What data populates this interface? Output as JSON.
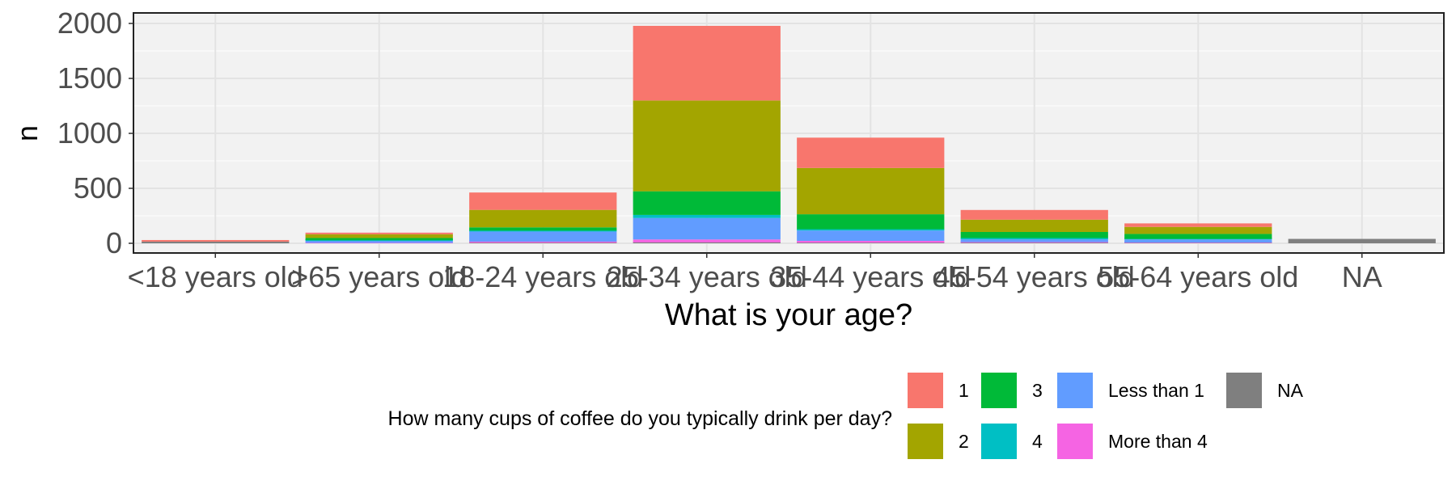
{
  "chart_data": {
    "type": "bar",
    "stacked": true,
    "title": "",
    "xlabel": "What is your age?",
    "ylabel": "n",
    "ylim": [
      0,
      2060
    ],
    "yticks": [
      0,
      500,
      1000,
      1500,
      2000
    ],
    "grid": true,
    "legend_position": "bottom",
    "legend_title": "How many cups of coffee do you typically drink per day?",
    "categories": [
      "<18 years old",
      ">65 years old",
      "18-24 years old",
      "25-34 years old",
      "35-44 years old",
      "45-54 years old",
      "55-64 years old",
      "NA"
    ],
    "series": [
      {
        "name": "1",
        "color": "#F8766D",
        "values": [
          2,
          12,
          158,
          679,
          276,
          88,
          32,
          0
        ]
      },
      {
        "name": "2",
        "color": "#A3A500",
        "values": [
          0,
          34,
          159,
          826,
          421,
          112,
          64,
          0
        ]
      },
      {
        "name": "3",
        "color": "#00BA38",
        "values": [
          0,
          20,
          30,
          215,
          136,
          55,
          45,
          0
        ]
      },
      {
        "name": "4",
        "color": "#00BFC4",
        "values": [
          0,
          6,
          8,
          28,
          12,
          12,
          5,
          0
        ]
      },
      {
        "name": "Less than 1",
        "color": "#619CFF",
        "values": [
          0,
          18,
          92,
          195,
          94,
          25,
          28,
          0
        ]
      },
      {
        "name": "More than 4",
        "color": "#F564E3",
        "values": [
          0,
          4,
          10,
          27,
          17,
          6,
          4,
          0
        ]
      },
      {
        "name": "NA",
        "color": "#7F7F7F",
        "values": [
          15,
          0,
          5,
          8,
          5,
          5,
          3,
          40
        ]
      }
    ],
    "legend_layout": [
      [
        "1",
        "3",
        "Less than 1",
        "NA"
      ],
      [
        "2",
        "4",
        "More than 4"
      ]
    ]
  }
}
